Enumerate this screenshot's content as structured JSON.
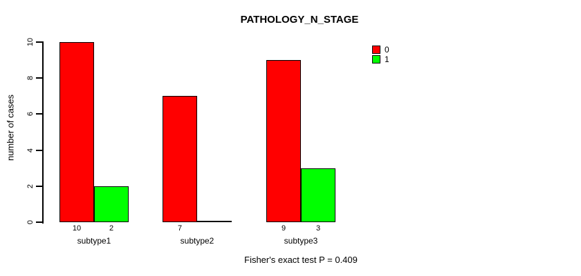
{
  "chart": {
    "title": "PATHOLOGY_N_STAGE",
    "ylabel": "number of cases",
    "footnote": "Fisher's exact test P = 0.409"
  },
  "chart_data": {
    "type": "bar",
    "title": "PATHOLOGY_N_STAGE",
    "xlabel": "",
    "ylabel": "number of cases",
    "categories": [
      "subtype1",
      "subtype2",
      "subtype3"
    ],
    "series": [
      {
        "name": "0",
        "color": "#ff0000",
        "values": [
          10,
          7,
          9
        ]
      },
      {
        "name": "1",
        "color": "#00ff00",
        "values": [
          2,
          0,
          3
        ]
      }
    ],
    "bar_value_labels": [
      [
        "10",
        "2"
      ],
      [
        "7",
        ""
      ],
      [
        "9",
        "3"
      ]
    ],
    "ylim": [
      0,
      10
    ],
    "yticks": [
      0,
      2,
      4,
      6,
      8,
      10
    ],
    "grid": false,
    "legend_position": "top-right",
    "legend": [
      {
        "label": "0",
        "color": "#ff0000"
      },
      {
        "label": "1",
        "color": "#00ff00"
      }
    ],
    "annotation": "Fisher's exact test P = 0.409"
  }
}
